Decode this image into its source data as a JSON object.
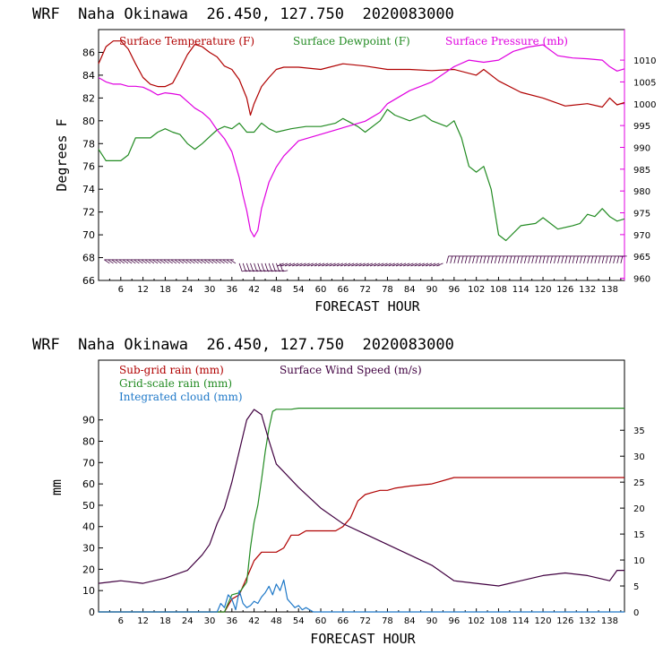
{
  "panels": [
    {
      "header": "WRF  Naha Okinawa  26.450, 127.750  2020083000",
      "xlabel": "FORECAST HOUR",
      "ylabel": "Degrees F"
    },
    {
      "header": "WRF  Naha Okinawa  26.450, 127.750  2020083000",
      "xlabel": "FORECAST HOUR",
      "ylabel": "mm"
    }
  ],
  "chart_data": [
    {
      "type": "line",
      "xlabel": "FORECAST HOUR",
      "ylabel": "Degrees F",
      "x_ticks": [
        6,
        12,
        18,
        24,
        30,
        36,
        42,
        48,
        54,
        60,
        66,
        72,
        78,
        84,
        90,
        96,
        102,
        108,
        114,
        120,
        126,
        132,
        138
      ],
      "xlim": [
        0,
        142
      ],
      "ylim": [
        66,
        88
      ],
      "y_ticks": [
        66,
        68,
        70,
        72,
        74,
        76,
        78,
        80,
        82,
        84,
        86
      ],
      "y2lim": [
        959.5,
        1017
      ],
      "y2_ticks": [
        960,
        965,
        970,
        975,
        980,
        985,
        990,
        995,
        1000,
        1005,
        1010
      ],
      "colors": {
        "temperature": "#b00000",
        "dewpoint": "#228b22",
        "pressure": "#e000e0",
        "wind": "#400040"
      },
      "series": [
        {
          "name": "Surface Temperature (F)",
          "axis": "left",
          "color": "#b00000",
          "x": [
            0,
            2,
            4,
            6,
            8,
            10,
            12,
            14,
            16,
            18,
            20,
            22,
            24,
            26,
            28,
            30,
            32,
            34,
            36,
            38,
            40,
            41,
            42,
            44,
            46,
            48,
            50,
            54,
            60,
            66,
            72,
            78,
            84,
            90,
            96,
            102,
            104,
            108,
            114,
            120,
            126,
            132,
            136,
            138,
            140,
            142
          ],
          "y": [
            85,
            86.5,
            87,
            87,
            86.3,
            85,
            83.8,
            83.2,
            83,
            83,
            83.3,
            84.5,
            85.8,
            86.7,
            86.5,
            86,
            85.6,
            84.8,
            84.5,
            83.6,
            82,
            80.5,
            81.5,
            83,
            83.8,
            84.5,
            84.7,
            84.7,
            84.5,
            85,
            84.8,
            84.5,
            84.5,
            84.4,
            84.5,
            84,
            84.5,
            83.5,
            82.5,
            82,
            81.3,
            81.5,
            81.2,
            82,
            81.4,
            81.6
          ]
        },
        {
          "name": "Surface Dewpoint (F)",
          "axis": "left",
          "color": "#228b22",
          "x": [
            0,
            2,
            4,
            6,
            8,
            10,
            12,
            14,
            16,
            18,
            20,
            22,
            24,
            26,
            28,
            30,
            32,
            34,
            36,
            38,
            40,
            42,
            44,
            46,
            48,
            52,
            56,
            60,
            64,
            66,
            70,
            72,
            76,
            78,
            80,
            84,
            88,
            90,
            94,
            96,
            98,
            100,
            102,
            104,
            106,
            108,
            110,
            114,
            118,
            120,
            124,
            128,
            130,
            132,
            134,
            136,
            138,
            140,
            142
          ],
          "y": [
            77.5,
            76.5,
            76.5,
            76.5,
            77,
            78.5,
            78.5,
            78.5,
            79,
            79.3,
            79,
            78.8,
            78,
            77.5,
            78,
            78.6,
            79.2,
            79.5,
            79.3,
            79.8,
            79,
            79,
            79.8,
            79.3,
            79,
            79.3,
            79.5,
            79.5,
            79.8,
            80.2,
            79.5,
            79,
            80,
            81,
            80.5,
            80,
            80.5,
            80,
            79.5,
            80,
            78.5,
            76,
            75.5,
            76,
            74,
            70,
            69.5,
            70.8,
            71,
            71.5,
            70.5,
            70.8,
            71,
            71.8,
            71.6,
            72.3,
            71.6,
            71.2,
            71.4
          ]
        },
        {
          "name": "Surface Pressure (mb)",
          "axis": "right",
          "color": "#e000e0",
          "x": [
            0,
            2,
            4,
            6,
            8,
            10,
            12,
            14,
            16,
            18,
            20,
            22,
            24,
            26,
            28,
            30,
            32,
            34,
            36,
            38,
            39,
            40,
            41,
            42,
            43,
            44,
            46,
            48,
            50,
            54,
            60,
            66,
            72,
            76,
            78,
            84,
            90,
            96,
            100,
            104,
            108,
            112,
            116,
            120,
            124,
            128,
            132,
            136,
            138,
            140,
            142
          ],
          "y": [
            1006,
            1005,
            1004.5,
            1004.5,
            1004,
            1004,
            1003.8,
            1003,
            1002,
            1002.5,
            1002.3,
            1002,
            1000.5,
            999,
            998,
            996.5,
            994,
            992,
            989,
            983,
            979,
            975.5,
            971,
            969.5,
            971,
            976,
            982,
            985.5,
            988,
            991.5,
            993,
            994.5,
            996,
            998,
            1000,
            1003,
            1005,
            1008.5,
            1010,
            1009.5,
            1010,
            1012,
            1013,
            1013.5,
            1011,
            1010.5,
            1010.3,
            1010,
            1008.5,
            1007.5,
            1008
          ]
        }
      ],
      "wind_barbs": {
        "name": "Surface wind barbs",
        "color": "#400040",
        "row_left_axis_value": 67.5,
        "x_start": 3,
        "x_end": 141,
        "every": 1
      }
    },
    {
      "type": "line",
      "xlabel": "FORECAST HOUR",
      "ylabel": "mm",
      "x_ticks": [
        6,
        12,
        18,
        24,
        30,
        36,
        42,
        48,
        54,
        60,
        66,
        72,
        78,
        84,
        90,
        96,
        102,
        108,
        114,
        120,
        126,
        132,
        138
      ],
      "xlim": [
        0,
        142
      ],
      "ylim": [
        0,
        118
      ],
      "y_ticks": [
        0,
        10,
        20,
        30,
        40,
        50,
        60,
        70,
        80,
        90
      ],
      "y2lim": [
        0,
        48.5
      ],
      "y2_ticks": [
        0,
        5,
        10,
        15,
        20,
        25,
        30,
        35
      ],
      "series": [
        {
          "name": "Sub-grid rain (mm)",
          "axis": "left",
          "color": "#b00000",
          "x": [
            0,
            34,
            36,
            38,
            39,
            40,
            41,
            42,
            44,
            46,
            48,
            50,
            52,
            54,
            56,
            58,
            60,
            62,
            64,
            66,
            68,
            70,
            72,
            74,
            76,
            78,
            80,
            84,
            90,
            96,
            102,
            108,
            114,
            120,
            126,
            132,
            138,
            142
          ],
          "y": [
            0,
            0,
            6,
            8,
            12,
            16,
            20,
            24,
            28,
            28,
            28,
            30,
            36,
            36,
            38,
            38,
            38,
            38,
            38,
            40,
            44,
            52,
            55,
            56,
            57,
            57,
            58,
            59,
            60,
            63,
            63,
            63,
            63,
            63,
            63,
            63,
            63,
            63
          ]
        },
        {
          "name": "Grid-scale rain (mm)",
          "axis": "left",
          "color": "#228b22",
          "x": [
            0,
            34,
            36,
            38,
            40,
            41,
            42,
            43,
            44,
            45,
            46,
            47,
            48,
            52,
            54,
            60,
            142
          ],
          "y": [
            0,
            0,
            8,
            9,
            14,
            30,
            42,
            50,
            62,
            75,
            86,
            94,
            95,
            95,
            95.5,
            95.5,
            95.5
          ]
        },
        {
          "name": "Integrated cloud (mm)",
          "axis": "left",
          "color": "#1e78c8",
          "x": [
            0,
            32,
            33,
            34,
            35,
            36,
            37,
            38,
            39,
            40,
            41,
            42,
            43,
            44,
            45,
            46,
            47,
            48,
            49,
            50,
            51,
            52,
            53,
            54,
            55,
            56,
            57,
            58,
            60,
            142
          ],
          "y": [
            0,
            0,
            4,
            2,
            8,
            6,
            1,
            10,
            4,
            2,
            3,
            5,
            4,
            7,
            9,
            12,
            8,
            13,
            10,
            15,
            6,
            4,
            2,
            3,
            1,
            2,
            1,
            0,
            0,
            0
          ]
        },
        {
          "name": "Surface Wind Speed (m/s)",
          "axis": "right",
          "color": "#400040",
          "x": [
            0,
            6,
            12,
            18,
            24,
            28,
            30,
            32,
            34,
            36,
            38,
            40,
            42,
            44,
            46,
            48,
            50,
            54,
            60,
            66,
            72,
            78,
            84,
            90,
            96,
            102,
            108,
            114,
            120,
            126,
            132,
            138,
            140,
            142
          ],
          "y": [
            5.5,
            6,
            5.5,
            6.5,
            8,
            11,
            13,
            17,
            20,
            25,
            31,
            37,
            39,
            38,
            33,
            28.5,
            27,
            24,
            20,
            17,
            15,
            13,
            11,
            9,
            6,
            5.5,
            5,
            6,
            7,
            7.5,
            7,
            6,
            8,
            8
          ]
        }
      ]
    }
  ]
}
